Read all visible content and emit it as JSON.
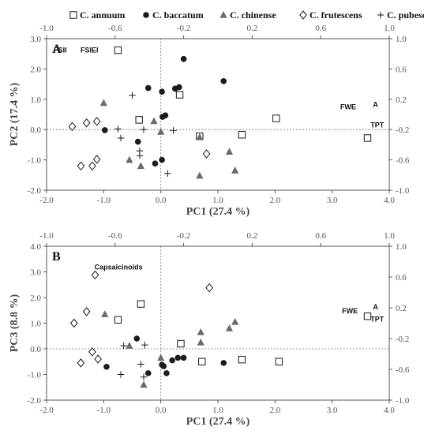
{
  "legend": [
    {
      "name": "C. annuum",
      "marker": "open-square"
    },
    {
      "name": "C. baccatum",
      "marker": "filled-circle"
    },
    {
      "name": "C. chinense",
      "marker": "filled-triangle"
    },
    {
      "name": "C. frutescens",
      "marker": "open-diamond"
    },
    {
      "name": "C. pubescens",
      "marker": "plus"
    }
  ],
  "colors": {
    "marker": "#1a1a1a",
    "triangle": "#6b6b6b",
    "baseline": "#777777",
    "frame": "#555555",
    "text": "#333333"
  },
  "chart_data": [
    {
      "type": "scatter",
      "panel": "A",
      "xlabel": "PC1 (27.4 %)",
      "ylabel": "PC2 (17.4 %)",
      "xlim": [
        -2.0,
        4.0
      ],
      "ylim": [
        -2.0,
        3.0
      ],
      "xticks": [
        "-2.0",
        "-1.0",
        "0.0",
        "1.0",
        "2.0",
        "3.0",
        "4.0"
      ],
      "yticks": [
        "-2.0",
        "-1.0",
        "0.0",
        "1.0",
        "2.0",
        "3.0"
      ],
      "top_ticks": [
        "-1.0",
        "-0.6",
        "-0.2",
        "0.2",
        "0.6",
        "1.0"
      ],
      "right_ticks": [
        "-1.0",
        "-0.6",
        "-0.2",
        "0.2",
        "0.6",
        "1.0"
      ],
      "series": [
        {
          "name": "C. annuum",
          "marker": "open-square",
          "points": [
            [
              -0.75,
              2.62
            ],
            [
              -0.38,
              0.32
            ],
            [
              0.33,
              1.15
            ],
            [
              0.68,
              -0.22
            ],
            [
              1.42,
              -0.17
            ],
            [
              2.02,
              0.37
            ],
            [
              3.62,
              -0.28
            ]
          ]
        },
        {
          "name": "C. baccatum",
          "marker": "filled-circle",
          "points": [
            [
              -0.98,
              -0.02
            ],
            [
              -0.4,
              -0.4
            ],
            [
              -0.22,
              1.37
            ],
            [
              -0.1,
              -1.12
            ],
            [
              0.02,
              1.25
            ],
            [
              0.03,
              0.42
            ],
            [
              0.08,
              0.47
            ],
            [
              0.02,
              -1.0
            ],
            [
              0.25,
              1.35
            ],
            [
              0.32,
              1.4
            ],
            [
              0.4,
              2.33
            ],
            [
              1.1,
              1.6
            ]
          ]
        },
        {
          "name": "C. chinense",
          "marker": "filled-triangle",
          "points": [
            [
              -1.0,
              0.88
            ],
            [
              -0.55,
              -1.0
            ],
            [
              -0.35,
              -1.2
            ],
            [
              -0.12,
              0.28
            ],
            [
              0.0,
              -0.07
            ],
            [
              0.68,
              -0.25
            ],
            [
              0.68,
              -1.52
            ],
            [
              1.2,
              -0.73
            ],
            [
              1.3,
              -1.35
            ]
          ]
        },
        {
          "name": "C. frutescens",
          "marker": "open-diamond",
          "points": [
            [
              -1.55,
              0.1
            ],
            [
              -1.3,
              0.22
            ],
            [
              -1.12,
              0.27
            ],
            [
              -1.4,
              -1.2
            ],
            [
              -1.2,
              -1.2
            ],
            [
              -1.12,
              -0.98
            ],
            [
              0.8,
              -0.8
            ]
          ]
        },
        {
          "name": "C. pubescens",
          "marker": "plus",
          "points": [
            [
              -0.5,
              1.13
            ],
            [
              -0.75,
              0.02
            ],
            [
              -0.7,
              -0.28
            ],
            [
              -0.37,
              -0.7
            ],
            [
              -0.37,
              -0.86
            ],
            [
              -0.3,
              0.0
            ],
            [
              0.12,
              -1.45
            ],
            [
              0.22,
              -0.03
            ]
          ]
        }
      ],
      "loadings": [
        {
          "label": "FSII",
          "x": -0.92,
          "y": 0.82
        },
        {
          "label": "FSIEI",
          "x": -0.75,
          "y": 0.82
        },
        {
          "label": "FWE",
          "x": 0.76,
          "y": 0.07
        },
        {
          "label": "A",
          "x": 0.92,
          "y": 0.1
        },
        {
          "label": "TPT",
          "x": 0.93,
          "y": -0.17
        }
      ]
    },
    {
      "type": "scatter",
      "panel": "B",
      "xlabel": "PC1 (27.4 %)",
      "ylabel": "PC3 (8.8 %)",
      "xlim": [
        -2.0,
        4.0
      ],
      "ylim": [
        -2.0,
        4.0
      ],
      "xticks": [
        "-2.0",
        "-1.0",
        "0.0",
        "1.0",
        "2.0",
        "3.0",
        "4.0"
      ],
      "yticks": [
        "-2.0",
        "-1.0",
        "0.0",
        "1.0",
        "2.0",
        "3.0",
        "4.0"
      ],
      "top_ticks": [
        "-1.0",
        "-0.6",
        "-0.2",
        "0.2",
        "0.6",
        "1.0"
      ],
      "right_ticks": [
        "-1.0",
        "-0.6",
        "-0.2",
        "0.2",
        "0.6",
        "1.0"
      ],
      "series": [
        {
          "name": "C. annuum",
          "marker": "open-square",
          "points": [
            [
              -0.75,
              1.13
            ],
            [
              -0.35,
              1.75
            ],
            [
              0.35,
              0.2
            ],
            [
              0.72,
              -0.5
            ],
            [
              1.42,
              -0.42
            ],
            [
              2.07,
              -0.5
            ],
            [
              3.62,
              1.27
            ]
          ]
        },
        {
          "name": "C. baccatum",
          "marker": "filled-circle",
          "points": [
            [
              -0.95,
              -0.7
            ],
            [
              -0.42,
              0.4
            ],
            [
              -0.22,
              -0.95
            ],
            [
              0.02,
              -0.62
            ],
            [
              0.05,
              -0.68
            ],
            [
              0.1,
              -0.95
            ],
            [
              0.2,
              -0.45
            ],
            [
              0.3,
              -0.35
            ],
            [
              0.4,
              -0.35
            ],
            [
              1.1,
              -0.55
            ]
          ]
        },
        {
          "name": "C. chinense",
          "marker": "filled-triangle",
          "points": [
            [
              -0.98,
              1.35
            ],
            [
              -0.55,
              0.12
            ],
            [
              -0.3,
              -1.4
            ],
            [
              0.0,
              -0.35
            ],
            [
              0.7,
              0.25
            ],
            [
              0.7,
              0.65
            ],
            [
              1.2,
              0.8
            ],
            [
              1.3,
              1.05
            ]
          ]
        },
        {
          "name": "C. frutescens",
          "marker": "open-diamond",
          "points": [
            [
              -1.52,
              1.0
            ],
            [
              -1.3,
              1.45
            ],
            [
              -1.15,
              2.88
            ],
            [
              -1.2,
              -0.12
            ],
            [
              -1.1,
              -0.4
            ],
            [
              -1.4,
              -0.55
            ],
            [
              0.85,
              2.38
            ]
          ]
        },
        {
          "name": "C. pubescens",
          "marker": "plus",
          "points": [
            [
              -0.65,
              0.12
            ],
            [
              -0.7,
              -1.0
            ],
            [
              -0.35,
              -0.6
            ],
            [
              -0.3,
              -1.1
            ],
            [
              -0.28,
              0.15
            ]
          ]
        }
      ],
      "loadings": [
        {
          "label": "Capsaicinoids",
          "x": -0.58,
          "y": 0.7
        },
        {
          "label": "FWE",
          "x": 0.77,
          "y": 0.13
        },
        {
          "label": "A",
          "x": 0.92,
          "y": 0.18
        },
        {
          "label": "TPT",
          "x": 0.93,
          "y": 0.02
        }
      ]
    }
  ]
}
